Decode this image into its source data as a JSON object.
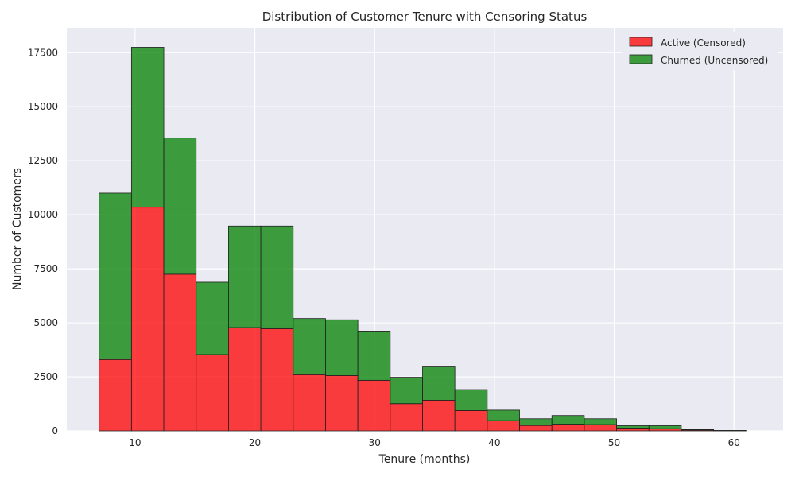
{
  "chart_data": {
    "type": "bar",
    "stacked": true,
    "title": "Distribution of Customer Tenure with Censoring Status",
    "xlabel": "Tenure (months)",
    "ylabel": "Number of Customers",
    "xlim": [
      4.3,
      64.1
    ],
    "ylim": [
      0,
      18650
    ],
    "xticks": [
      10,
      20,
      30,
      40,
      50,
      60
    ],
    "yticks": [
      0,
      2500,
      5000,
      7500,
      10000,
      12500,
      15000,
      17500
    ],
    "grid": true,
    "legend_position": "top-right",
    "bin_edges": [
      7.0,
      9.7,
      12.4,
      15.1,
      17.8,
      20.5,
      23.2,
      25.9,
      28.6,
      31.3,
      34.0,
      36.7,
      39.4,
      42.1,
      44.8,
      47.5,
      50.2,
      52.9,
      55.6,
      58.3,
      61.0
    ],
    "series": [
      {
        "name": "Active (Censored)",
        "color": "#ff0000",
        "values": [
          3300,
          10350,
          7250,
          3530,
          4780,
          4730,
          2600,
          2560,
          2340,
          1260,
          1420,
          940,
          470,
          250,
          310,
          290,
          130,
          100,
          40,
          10
        ]
      },
      {
        "name": "Churned (Uncensored)",
        "color": "#008000",
        "values": [
          7700,
          7400,
          6300,
          3350,
          4700,
          4750,
          2600,
          2580,
          2280,
          1220,
          1540,
          970,
          490,
          310,
          400,
          270,
          110,
          140,
          30,
          10
        ]
      }
    ]
  }
}
